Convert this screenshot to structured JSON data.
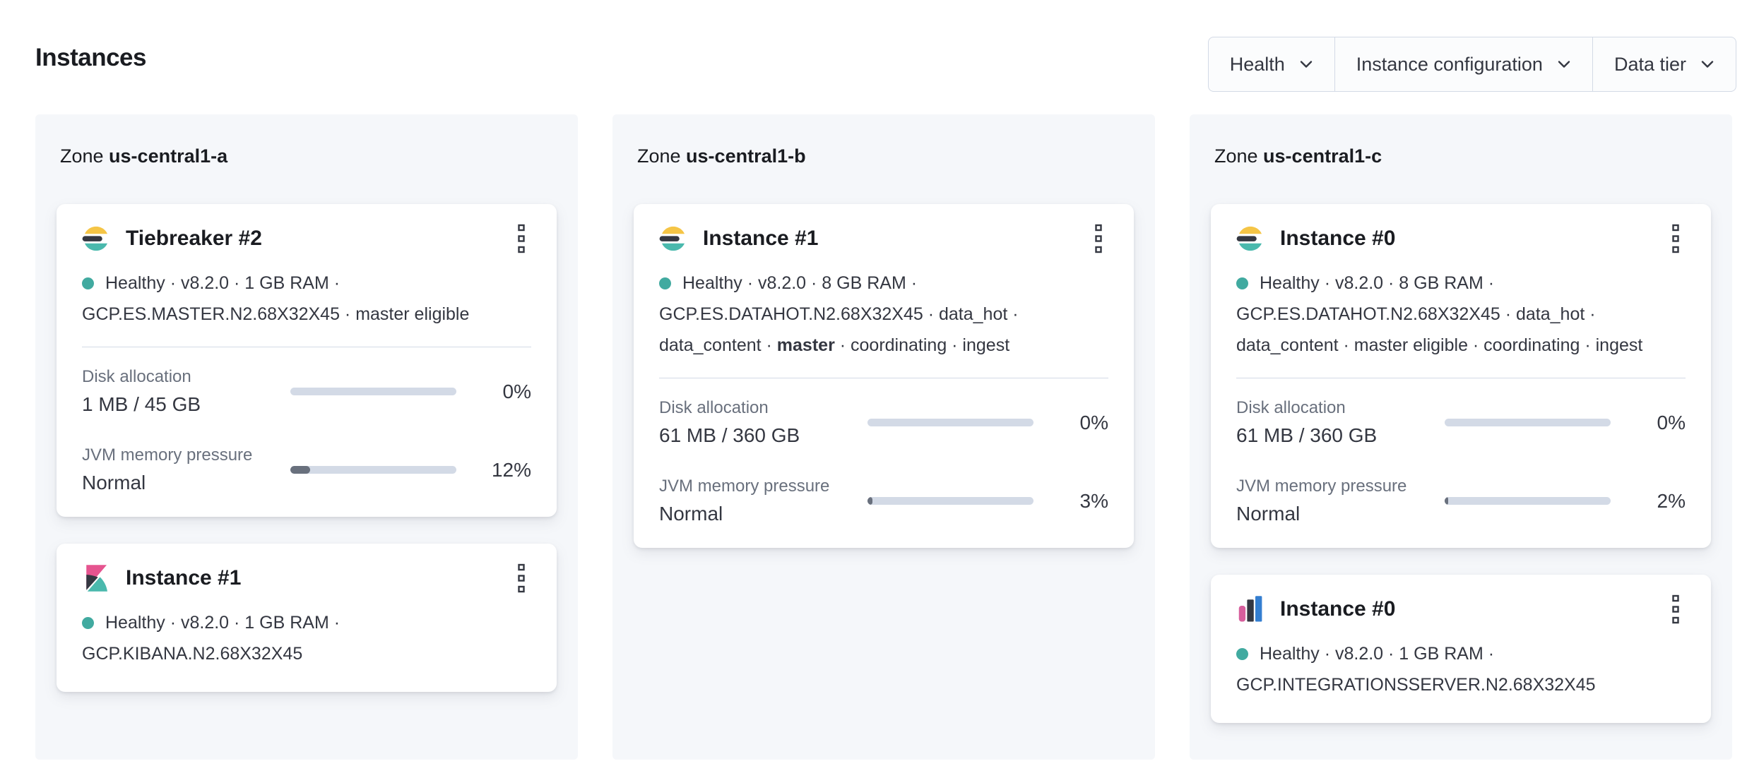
{
  "page": {
    "title": "Instances"
  },
  "filters": [
    {
      "label": "Health"
    },
    {
      "label": "Instance configuration"
    },
    {
      "label": "Data tier"
    }
  ],
  "colors": {
    "health_dot": "#41aaa0",
    "bar_track": "#d3dae6",
    "bar_fill": "#69707d",
    "es_yellow": "#f5c546",
    "brand_dark": "#343741",
    "brand_teal": "#4ab9ad",
    "kibana_pink": "#e5548f",
    "integrations_pink": "#d75f9d",
    "integrations_blue": "#347ed0"
  },
  "zone_label_prefix": "Zone",
  "zones": [
    {
      "name": "us-central1-a",
      "instances": [
        {
          "logo": "elasticsearch",
          "title": "Tiebreaker #2",
          "status": "Healthy",
          "health_lines": [
            [
              {
                "t": "Healthy · v8.2.0 · 1 GB RAM ·"
              }
            ],
            [
              {
                "t": "GCP.ES.MASTER.N2.68X32X45 · master eligible"
              }
            ]
          ],
          "metrics": [
            {
              "label": "Disk allocation",
              "value": "1 MB / 45 GB",
              "percent": "0%",
              "fill": 0
            },
            {
              "label": "JVM memory pressure",
              "value": "Normal",
              "percent": "12%",
              "fill": 12
            }
          ]
        },
        {
          "logo": "kibana",
          "title": "Instance #1",
          "status": "Healthy",
          "health_lines": [
            [
              {
                "t": "Healthy · v8.2.0 · 1 GB RAM ·"
              }
            ],
            [
              {
                "t": "GCP.KIBANA.N2.68X32X45"
              }
            ]
          ],
          "metrics": []
        }
      ]
    },
    {
      "name": "us-central1-b",
      "instances": [
        {
          "logo": "elasticsearch",
          "title": "Instance #1",
          "status": "Healthy",
          "health_lines": [
            [
              {
                "t": "Healthy · v8.2.0 · 8 GB RAM ·"
              }
            ],
            [
              {
                "t": "GCP.ES.DATAHOT.N2.68X32X45 · data_hot ·"
              }
            ],
            [
              {
                "t": "data_content · "
              },
              {
                "t": "master",
                "b": true
              },
              {
                "t": " · coordinating · ingest"
              }
            ]
          ],
          "metrics": [
            {
              "label": "Disk allocation",
              "value": "61 MB / 360 GB",
              "percent": "0%",
              "fill": 0
            },
            {
              "label": "JVM memory pressure",
              "value": "Normal",
              "percent": "3%",
              "fill": 3
            }
          ]
        }
      ]
    },
    {
      "name": "us-central1-c",
      "instances": [
        {
          "logo": "elasticsearch",
          "title": "Instance #0",
          "status": "Healthy",
          "health_lines": [
            [
              {
                "t": "Healthy · v8.2.0 · 8 GB RAM ·"
              }
            ],
            [
              {
                "t": "GCP.ES.DATAHOT.N2.68X32X45 · data_hot ·"
              }
            ],
            [
              {
                "t": "data_content · master eligible · coordinating · ingest"
              }
            ]
          ],
          "metrics": [
            {
              "label": "Disk allocation",
              "value": "61 MB / 360 GB",
              "percent": "0%",
              "fill": 0
            },
            {
              "label": "JVM memory pressure",
              "value": "Normal",
              "percent": "2%",
              "fill": 2
            }
          ]
        },
        {
          "logo": "integrations-server",
          "title": "Instance #0",
          "status": "Healthy",
          "health_lines": [
            [
              {
                "t": "Healthy · v8.2.0 · 1 GB RAM ·"
              }
            ],
            [
              {
                "t": "GCP.INTEGRATIONSSERVER.N2.68X32X45"
              }
            ]
          ],
          "metrics": []
        }
      ]
    }
  ]
}
